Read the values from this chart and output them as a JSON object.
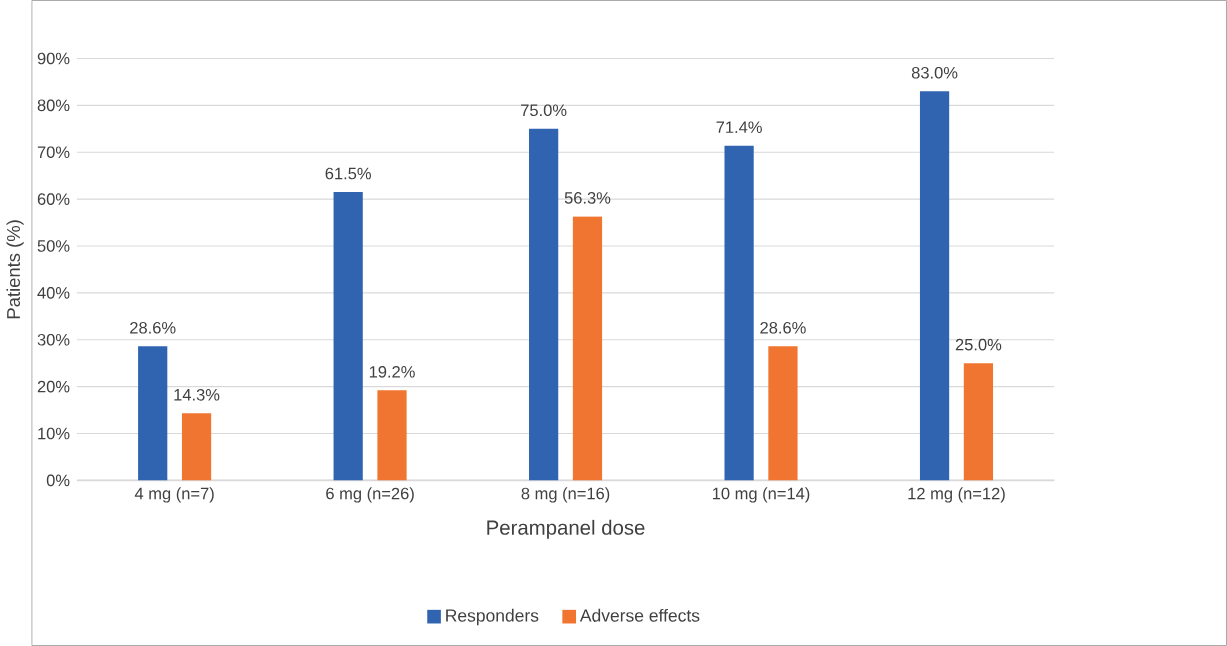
{
  "chart_data": {
    "type": "bar",
    "xlabel": "Perampanel dose",
    "ylabel": "Patients (%)",
    "categories": [
      "4 mg (n=7)",
      "6 mg (n=26)",
      "8 mg (n=16)",
      "10 mg (n=14)",
      "12 mg (n=12)"
    ],
    "series": [
      {
        "name": "Responders",
        "color": "#3064b0",
        "values": [
          28.6,
          61.5,
          75.0,
          71.4,
          83.0
        ],
        "value_labels": [
          "28.6%",
          "61.5%",
          "75.0%",
          "71.4%",
          "83.0%"
        ]
      },
      {
        "name": "Adverse effects",
        "color": "#f07530",
        "values": [
          14.3,
          19.2,
          56.3,
          28.6,
          25.0
        ],
        "value_labels": [
          "14.3%",
          "19.2%",
          "56.3%",
          "28.6%",
          "25.0%"
        ]
      }
    ],
    "ylim": [
      0,
      90
    ],
    "yticks": [
      {
        "value": 0,
        "label": "0%"
      },
      {
        "value": 10,
        "label": "10%"
      },
      {
        "value": 20,
        "label": "20%"
      },
      {
        "value": 30,
        "label": "30%"
      },
      {
        "value": 40,
        "label": "40%"
      },
      {
        "value": 50,
        "label": "50%"
      },
      {
        "value": 60,
        "label": "60%"
      },
      {
        "value": 70,
        "label": "70%"
      },
      {
        "value": 80,
        "label": "80%"
      },
      {
        "value": 90,
        "label": "90%"
      }
    ],
    "grid": "y",
    "legend": "bottom"
  }
}
